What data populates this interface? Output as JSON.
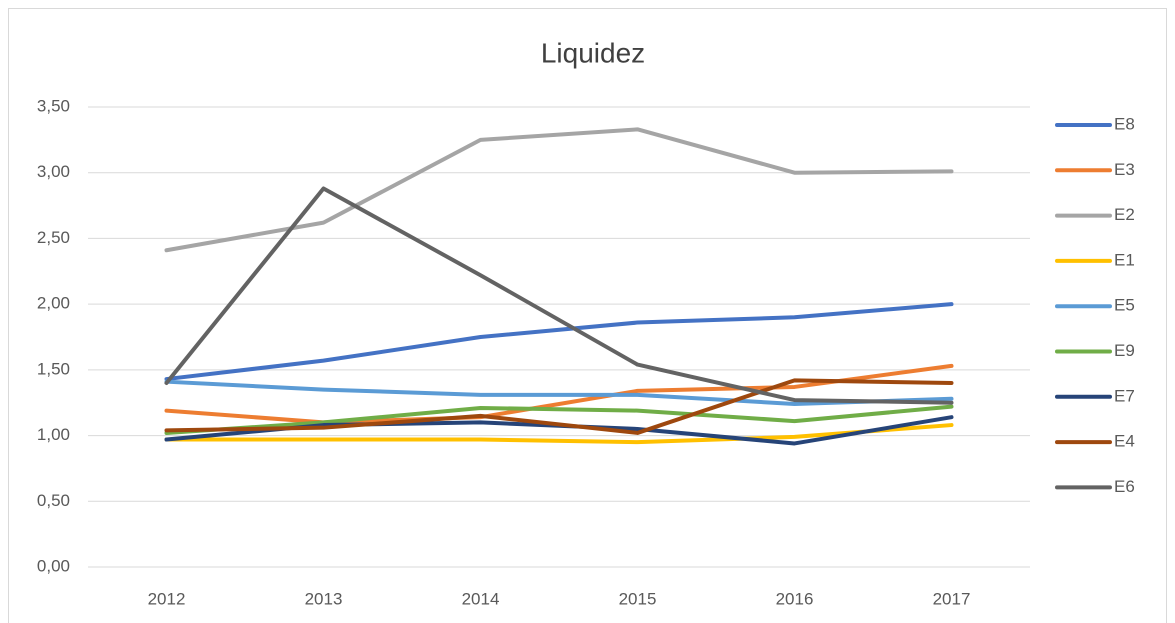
{
  "chart_data": {
    "type": "line",
    "title": "Liquidez",
    "categories": [
      "2012",
      "2013",
      "2014",
      "2015",
      "2016",
      "2017"
    ],
    "series": [
      {
        "name": "E8",
        "color": "#4472c4",
        "values": [
          1.43,
          1.57,
          1.75,
          1.86,
          1.9,
          2.0
        ]
      },
      {
        "name": "E3",
        "color": "#ed7d31",
        "values": [
          1.19,
          1.1,
          1.14,
          1.34,
          1.37,
          1.53
        ]
      },
      {
        "name": "E2",
        "color": "#a5a5a5",
        "values": [
          2.41,
          2.62,
          3.25,
          3.33,
          3.0,
          3.01
        ]
      },
      {
        "name": "E1",
        "color": "#ffc000",
        "values": [
          0.97,
          0.97,
          0.97,
          0.95,
          0.99,
          1.08
        ]
      },
      {
        "name": "E5",
        "color": "#5b9bd5",
        "values": [
          1.41,
          1.35,
          1.31,
          1.31,
          1.24,
          1.28
        ]
      },
      {
        "name": "E9",
        "color": "#70ad47",
        "values": [
          1.02,
          1.1,
          1.21,
          1.19,
          1.11,
          1.22
        ]
      },
      {
        "name": "E7",
        "color": "#264478",
        "values": [
          0.97,
          1.08,
          1.1,
          1.05,
          0.94,
          1.14
        ]
      },
      {
        "name": "E4",
        "color": "#9e480e",
        "values": [
          1.04,
          1.06,
          1.15,
          1.02,
          1.42,
          1.4
        ]
      },
      {
        "name": "E6",
        "color": "#636363",
        "values": [
          1.4,
          2.88,
          2.22,
          1.54,
          1.27,
          1.25
        ]
      }
    ],
    "ylim": [
      0,
      3.5
    ],
    "yticks": [
      {
        "value": 0,
        "label": "0,00"
      },
      {
        "value": 0.5,
        "label": "0,50"
      },
      {
        "value": 1,
        "label": "1,00"
      },
      {
        "value": 1.5,
        "label": "1,50"
      },
      {
        "value": 2,
        "label": "2,00"
      },
      {
        "value": 2.5,
        "label": "2,50"
      },
      {
        "value": 3,
        "label": "3,00"
      },
      {
        "value": 3.5,
        "label": "3,50"
      }
    ],
    "grid": true,
    "legend": "right"
  }
}
